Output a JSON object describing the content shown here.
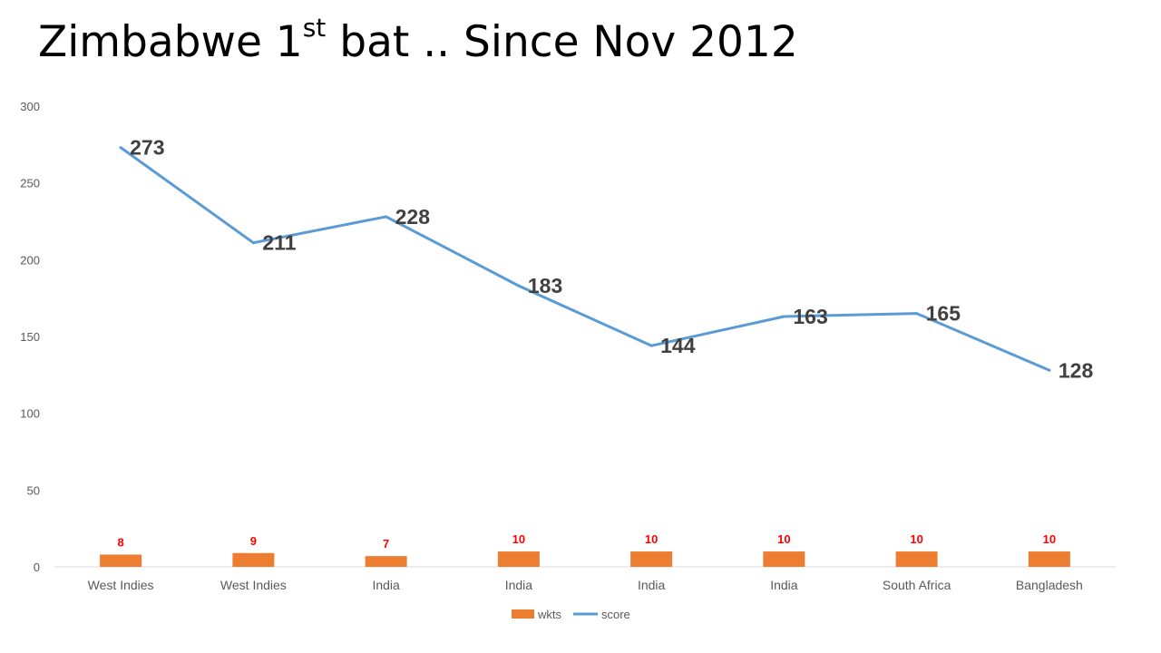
{
  "title": {
    "main": "Zimbabwe 1",
    "superscript": "st",
    "rest": " bat .. Since Nov 2012"
  },
  "chart_data": {
    "type": "bar+line",
    "categories": [
      "West Indies",
      "West Indies",
      "India",
      "India",
      "India",
      "India",
      "South Africa",
      "Bangladesh"
    ],
    "series": [
      {
        "name": "wkts",
        "type": "bar",
        "values": [
          8,
          9,
          7,
          10,
          10,
          10,
          10,
          10
        ],
        "color": "#ED7D31",
        "label_color": "#FF0000"
      },
      {
        "name": "score",
        "type": "line",
        "values": [
          273,
          211,
          228,
          183,
          144,
          163,
          165,
          128
        ],
        "color": "#5B9BD5",
        "label_color": "#404040"
      }
    ],
    "ylim": [
      0,
      300
    ],
    "yticks": [
      0,
      50,
      100,
      150,
      200,
      250,
      300
    ],
    "grid": false,
    "legend": "bottom"
  }
}
